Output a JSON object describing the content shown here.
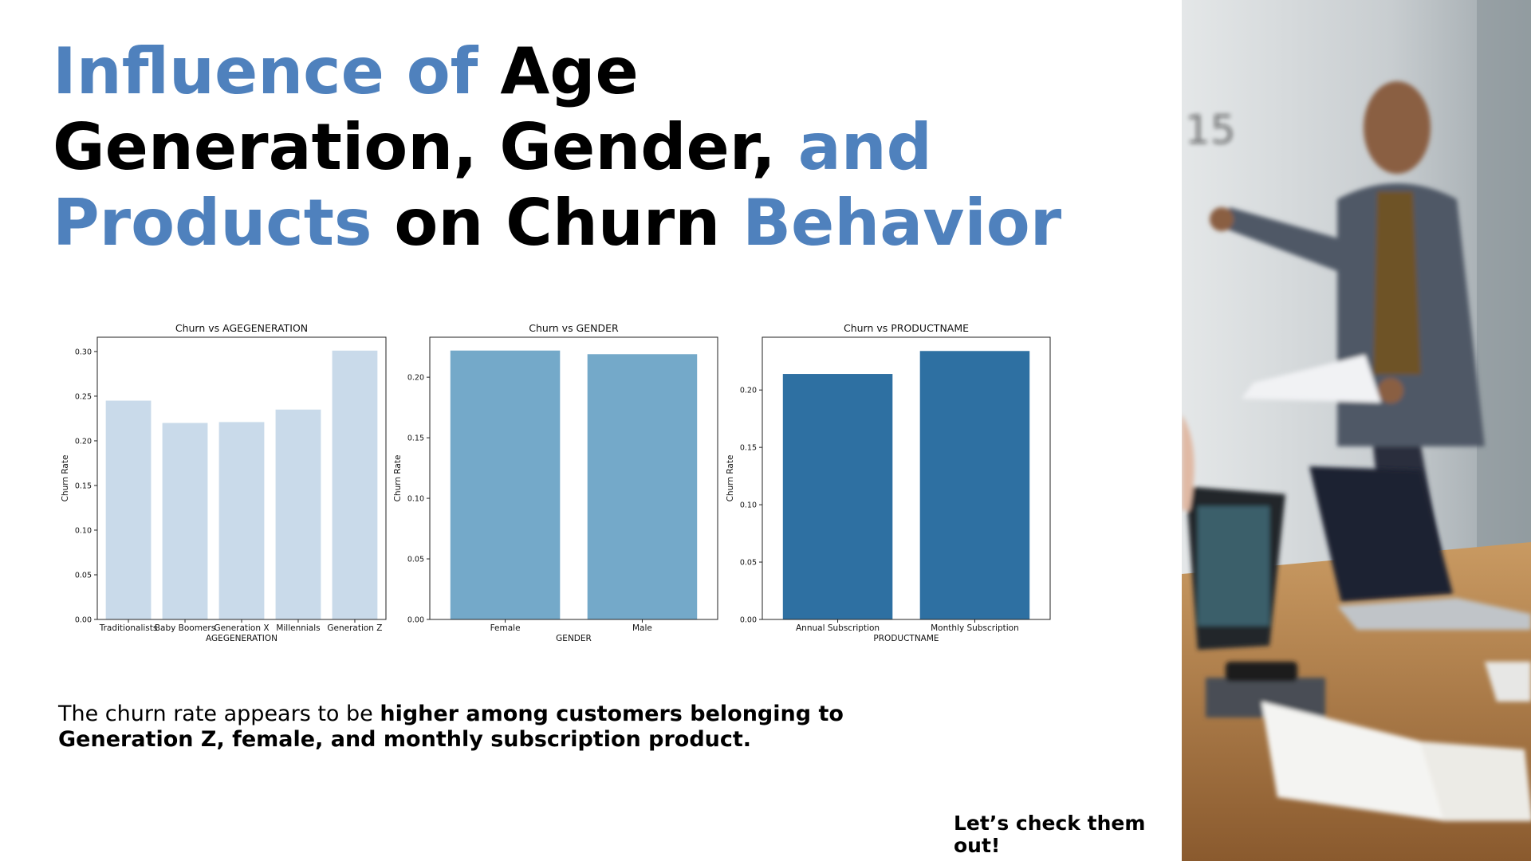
{
  "title": {
    "line1_blue": "Influence of",
    "line1_black": "Age",
    "line2_black": "Generation, Gender,",
    "line2_blue": "and",
    "line3_blue": "Products",
    "line3_black": "on Churn",
    "line3_blue_end": "Behavior"
  },
  "summary": {
    "text_plain": "The churn rate appears to be ",
    "text_bold": "higher among customers belonging to Generation Z, female, and monthly subscription product."
  },
  "cta": "Let’s check them out!",
  "photo": {
    "alt_icon": "presentation-meeting-photo"
  },
  "colors": {
    "accent_blue": "#4f81bd",
    "bar_age": "#c9daea",
    "bar_gender": "#74a9c9",
    "bar_product": "#2e70a2"
  },
  "chart_data": [
    {
      "type": "bar",
      "title": "Churn vs AGEGENERATION",
      "xlabel": "AGEGENERATION",
      "ylabel": "Churn Rate",
      "categories": [
        "Traditionalists",
        "Baby Boomers",
        "Generation X",
        "Millennials",
        "Generation Z"
      ],
      "values": [
        0.245,
        0.22,
        0.221,
        0.235,
        0.301
      ],
      "ylim": [
        0,
        0.316
      ],
      "yticks": [
        "0.00",
        "0.05",
        "0.10",
        "0.15",
        "0.20",
        "0.25",
        "0.30"
      ],
      "ytick_values": [
        0,
        0.05,
        0.1,
        0.15,
        0.2,
        0.25,
        0.3
      ],
      "color": "#c9daea",
      "grid": false
    },
    {
      "type": "bar",
      "title": "Churn vs GENDER",
      "xlabel": "GENDER",
      "ylabel": "Churn Rate",
      "categories": [
        "Female",
        "Male"
      ],
      "values": [
        0.222,
        0.219
      ],
      "ylim": [
        0,
        0.233
      ],
      "yticks": [
        "0.00",
        "0.05",
        "0.10",
        "0.15",
        "0.20"
      ],
      "ytick_values": [
        0,
        0.05,
        0.1,
        0.15,
        0.2
      ],
      "color": "#74a9c9",
      "grid": false
    },
    {
      "type": "bar",
      "title": "Churn vs PRODUCTNAME",
      "xlabel": "PRODUCTNAME",
      "ylabel": "Churn Rate",
      "categories": [
        "Annual Subscription",
        "Monthly Subscription"
      ],
      "values": [
        0.214,
        0.234
      ],
      "ylim": [
        0,
        0.246
      ],
      "yticks": [
        "0.00",
        "0.05",
        "0.10",
        "0.15",
        "0.20"
      ],
      "ytick_values": [
        0,
        0.05,
        0.1,
        0.15,
        0.2
      ],
      "color": "#2e70a2",
      "grid": false
    }
  ]
}
